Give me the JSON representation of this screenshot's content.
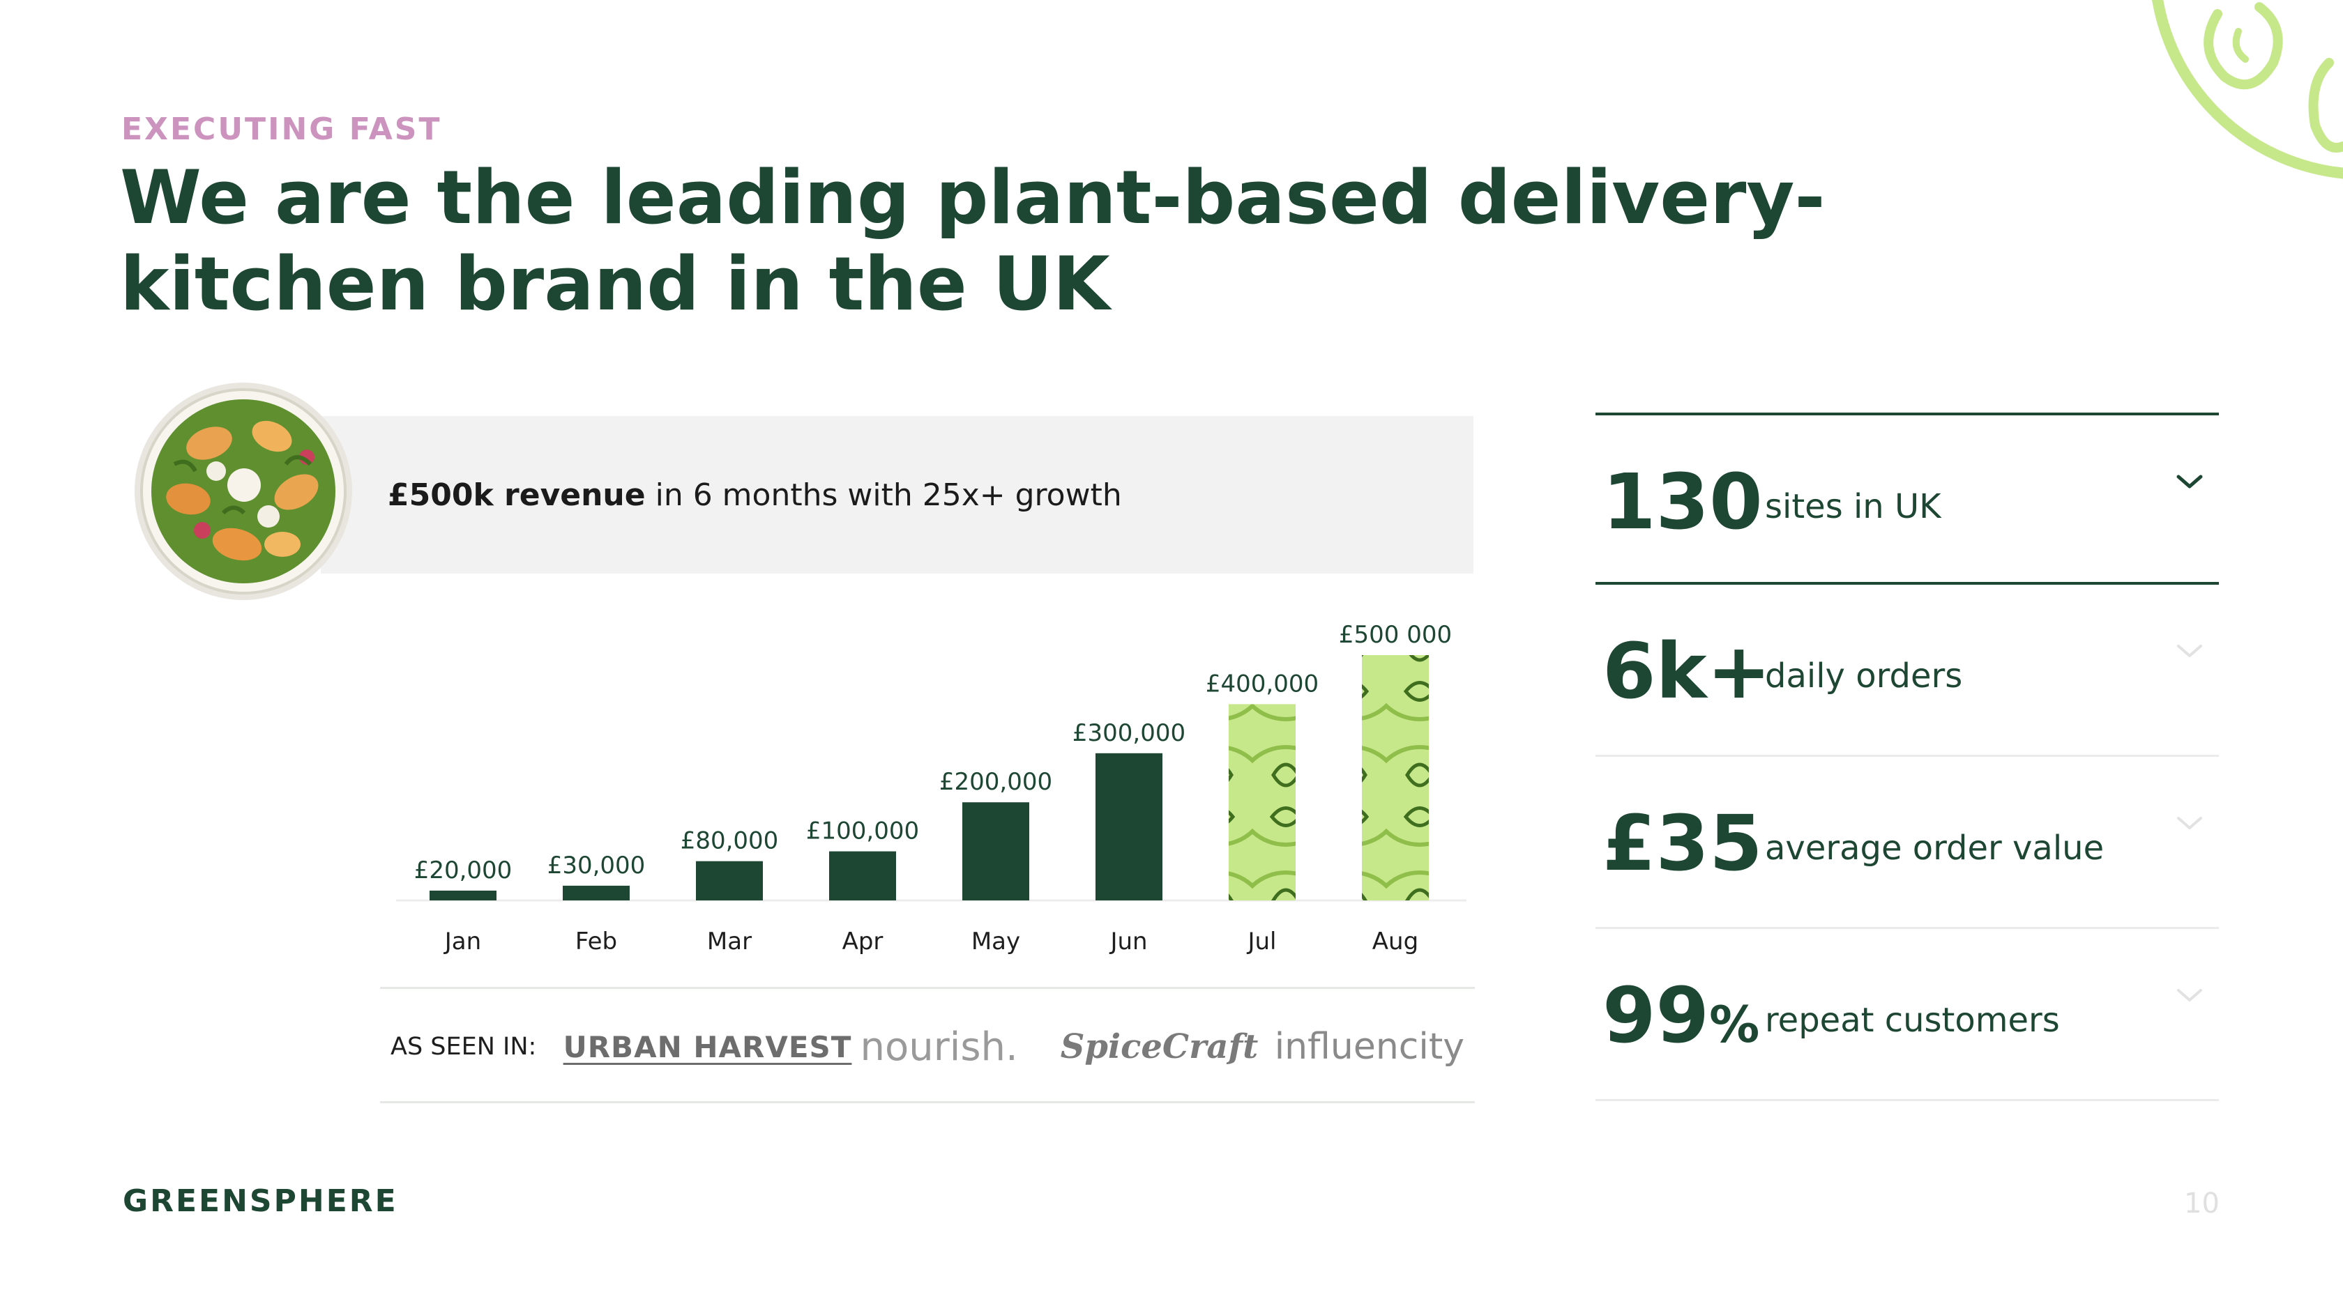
{
  "slide": {
    "eyebrow": "EXECUTING FAST",
    "title": "We are the leading plant-based delivery-kitchen brand in the UK",
    "brand": "GREENSPHERE",
    "page_number": "10"
  },
  "banner": {
    "highlight": "£500k revenue",
    "rest": " in 6 months with 25x+ growth",
    "image_icon": "salad-bowl-photo"
  },
  "chart_data": {
    "type": "bar",
    "title": "",
    "xlabel": "",
    "ylabel": "",
    "categories": [
      "Jan",
      "Feb",
      "Mar",
      "Apr",
      "May",
      "Jun",
      "Jul",
      "Aug"
    ],
    "values": [
      20000,
      30000,
      80000,
      100000,
      200000,
      300000,
      400000,
      500000
    ],
    "value_labels": [
      "£20,000",
      "£30,000",
      "£80,000",
      "£100,000",
      "£200,000",
      "£300,000",
      "£400,000",
      "£500 000"
    ],
    "ylim": [
      0,
      500000
    ],
    "grid": false,
    "bar_color": "#1d4633",
    "highlight_color": "#c6e88a",
    "highlighted_categories": [
      "Jul",
      "Aug"
    ]
  },
  "press": {
    "label": "AS SEEN IN:",
    "logos": [
      "URBAN HARVEST",
      "nourish.",
      "SpiceCraft",
      "influencity"
    ]
  },
  "stats": [
    {
      "value": "130",
      "suffix": "",
      "label": "sites in UK",
      "expanded": true
    },
    {
      "value": "6k+",
      "suffix": "",
      "label": "daily orders",
      "expanded": false
    },
    {
      "value": "£35",
      "suffix": "",
      "label": "average order value",
      "expanded": false
    },
    {
      "value": "99",
      "suffix": "%",
      "label": "repeat customers",
      "expanded": false
    }
  ],
  "colors": {
    "primary": "#1d4633",
    "accent_pink": "#cb93bd",
    "accent_lime": "#c6e88a",
    "banner_bg": "#f1f2f1"
  },
  "icons": [
    "salad-bowl-photo",
    "lime-corner-illustration",
    "chevron-down-icon"
  ]
}
